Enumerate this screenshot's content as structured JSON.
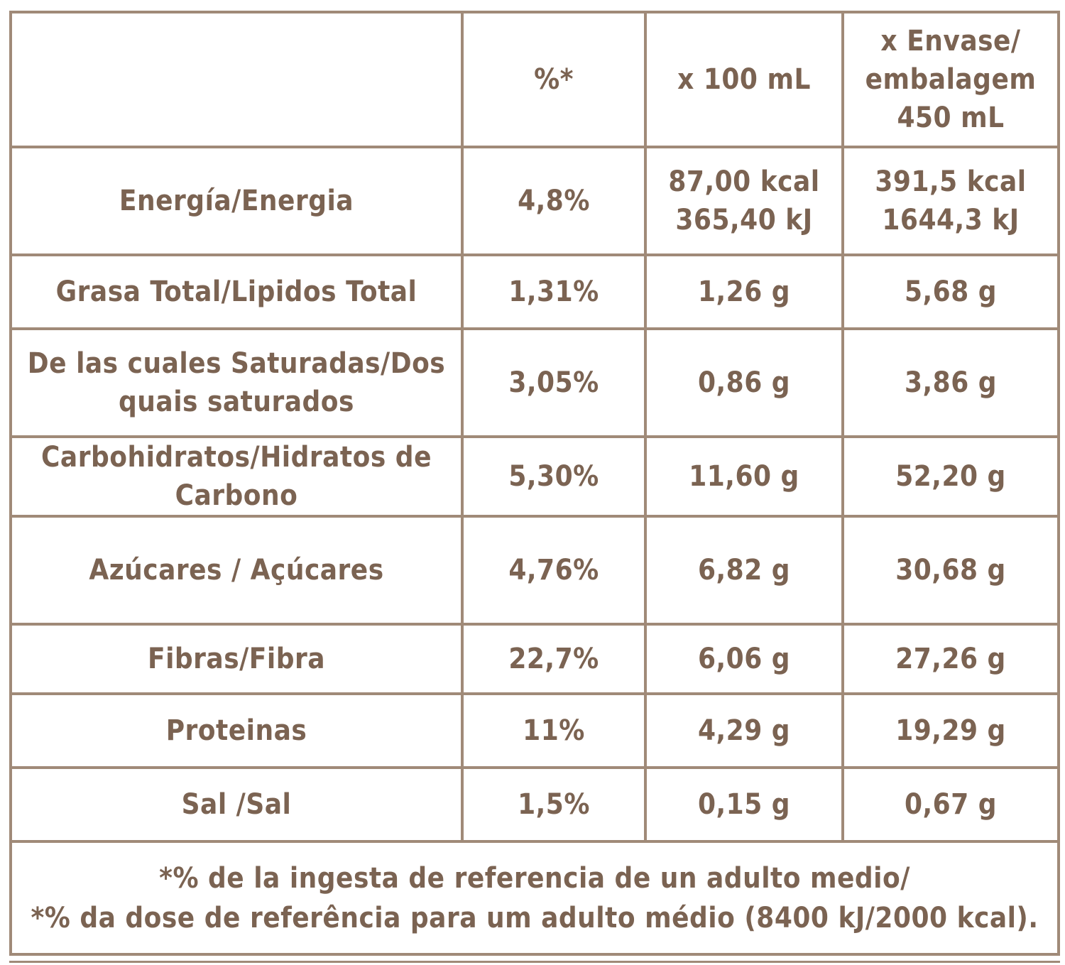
{
  "header": {
    "name": "",
    "percent": "%*",
    "per_100": "x 100 mL",
    "per_pack": "x Envase/\nembalagem\n450 mL"
  },
  "rows": [
    {
      "name": "Energía/Energia",
      "percent": "4,8%",
      "per_100": "87,00 kcal\n365,40 kJ",
      "per_pack": "391,5 kcal\n1644,3 kJ"
    },
    {
      "name": "Grasa Total/Lipidos Total",
      "percent": "1,31%",
      "per_100": "1,26 g",
      "per_pack": "5,68 g"
    },
    {
      "name": "De las cuales Saturadas/Dos\nquais saturados",
      "percent": "3,05%",
      "per_100": "0,86 g",
      "per_pack": "3,86 g"
    },
    {
      "name": "Carbohidratos/Hidratos de\nCarbono",
      "percent": "5,30%",
      "per_100": "11,60 g",
      "per_pack": "52,20 g"
    },
    {
      "name": "Azúcares / Açúcares",
      "percent": "4,76%",
      "per_100": "6,82 g",
      "per_pack": "30,68 g"
    },
    {
      "name": "Fibras/Fibra",
      "percent": "22,7%",
      "per_100": "6,06 g",
      "per_pack": "27,26 g"
    },
    {
      "name": "Proteinas",
      "percent": "11%",
      "per_100": "4,29 g",
      "per_pack": "19,29 g"
    },
    {
      "name": "Sal /Sal",
      "percent": "1,5%",
      "per_100": "0,15 g",
      "per_pack": "0,67 g"
    }
  ],
  "footnote": "*% de la ingesta de referencia de un adulto medio/\n*% da dose de referência para um adulto médio (8400 kJ/2000 kcal).",
  "colors": {
    "text": "#7b6352",
    "border": "#a08a78"
  }
}
